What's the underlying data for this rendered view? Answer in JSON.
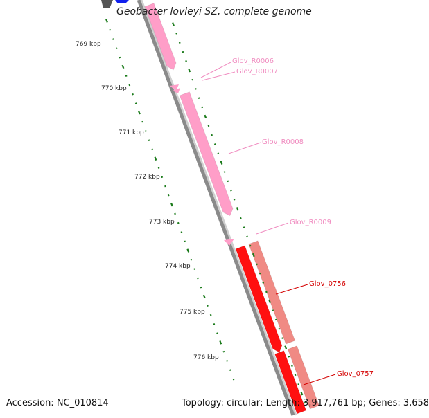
{
  "title": "Geobacter lovleyi SZ, complete genome",
  "accession": "Accession: NC_010814",
  "summary": "Topology: circular; Length: 3,917,761 bp; Genes: 3,658",
  "colors": {
    "background": "#ffffff",
    "backbone": "#8a8a8a",
    "rna": "#ff9ec8",
    "rna_label": "#f08cc0",
    "gene": "#ff1010",
    "gene_label": "#d40000",
    "gene_alt": "#f08a84",
    "ticks": "#1a7a1a",
    "dark_block": "#555555",
    "blue_block": "#1020ee"
  },
  "ticks": [
    {
      "label": "769 kbp"
    },
    {
      "label": "770 kbp"
    },
    {
      "label": "771 kbp"
    },
    {
      "label": "772 kbp"
    },
    {
      "label": "773 kbp"
    },
    {
      "label": "774 kbp"
    },
    {
      "label": "775 kbp"
    },
    {
      "label": "776 kbp"
    }
  ],
  "features": [
    {
      "label": "Glov_R0006",
      "kind": "rna"
    },
    {
      "label": "Glov_R0007",
      "kind": "rna"
    },
    {
      "label": "Glov_R0008",
      "kind": "rna"
    },
    {
      "label": "Glov_R0009",
      "kind": "rna"
    },
    {
      "label": "Glov_0756",
      "kind": "gene"
    },
    {
      "label": "Glov_0757",
      "kind": "gene"
    }
  ]
}
